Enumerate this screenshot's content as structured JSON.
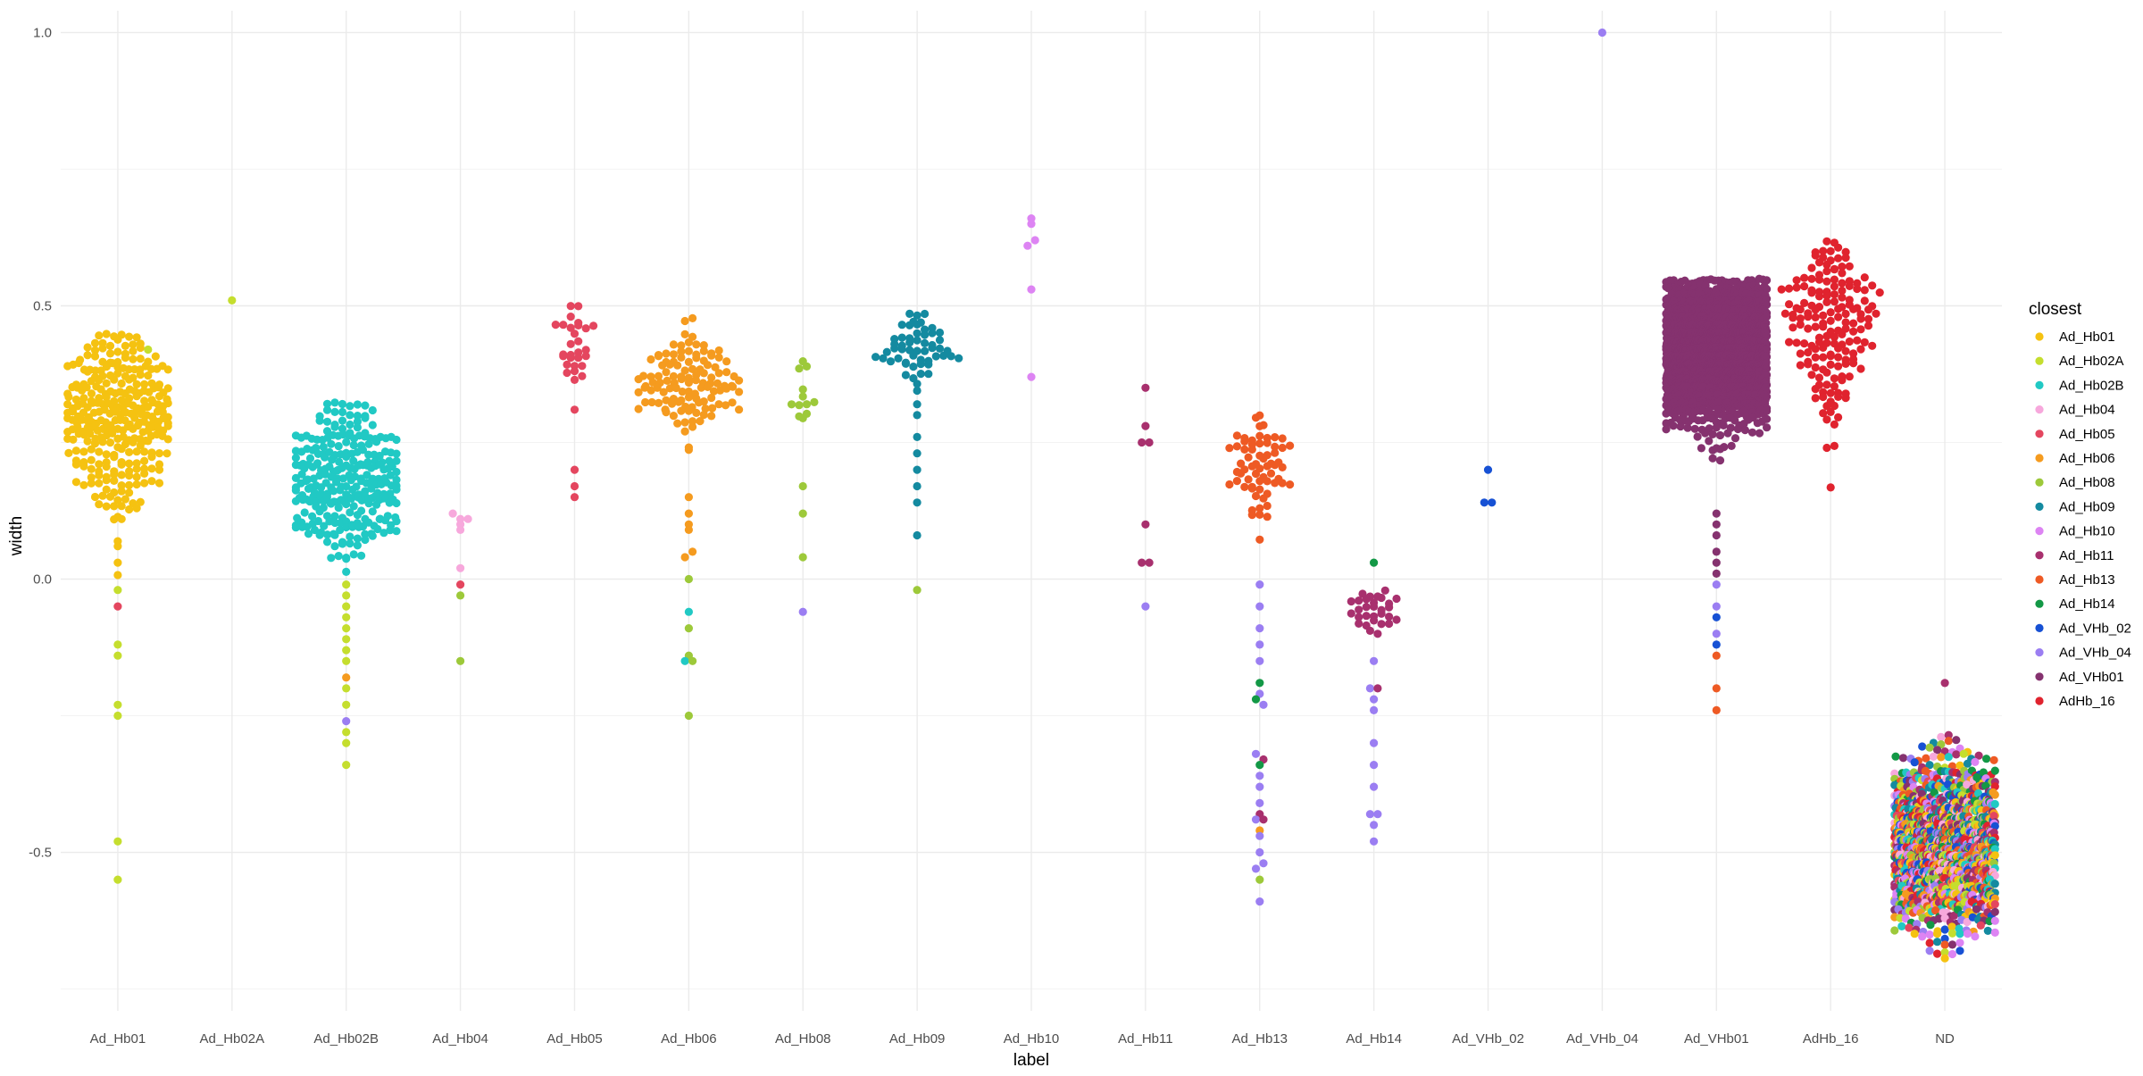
{
  "chart_data": {
    "type": "scatter",
    "subtype": "beeswarm",
    "title": "",
    "xlabel": "label",
    "ylabel": "width",
    "ylim": [
      -0.75,
      1.0
    ],
    "y_ticks": [
      -0.5,
      0.0,
      0.5,
      1.0
    ],
    "y_tick_labels": [
      "-0.5",
      "0.0",
      "0.5",
      "1.0"
    ],
    "grid": true,
    "legend": {
      "title": "closest",
      "position": "right"
    },
    "categories": [
      "Ad_Hb01",
      "Ad_Hb02A",
      "Ad_Hb02B",
      "Ad_Hb04",
      "Ad_Hb05",
      "Ad_Hb06",
      "Ad_Hb08",
      "Ad_Hb09",
      "Ad_Hb10",
      "Ad_Hb11",
      "Ad_Hb13",
      "Ad_Hb14",
      "Ad_VHb_02",
      "Ad_VHb_04",
      "Ad_VHb01",
      "AdHb_16",
      "ND"
    ],
    "series": [
      {
        "name": "Ad_Hb01",
        "color": "#F5C211"
      },
      {
        "name": "Ad_Hb02A",
        "color": "#C5DE2E"
      },
      {
        "name": "Ad_Hb02B",
        "color": "#21C9C4"
      },
      {
        "name": "Ad_Hb04",
        "color": "#F7A8DC"
      },
      {
        "name": "Ad_Hb05",
        "color": "#E4465F"
      },
      {
        "name": "Ad_Hb06",
        "color": "#F59B1F"
      },
      {
        "name": "Ad_Hb08",
        "color": "#9DC93A"
      },
      {
        "name": "Ad_Hb09",
        "color": "#148AA0"
      },
      {
        "name": "Ad_Hb10",
        "color": "#DD84F3"
      },
      {
        "name": "Ad_Hb11",
        "color": "#A8306E"
      },
      {
        "name": "Ad_Hb13",
        "color": "#EE5A24"
      },
      {
        "name": "Ad_Hb14",
        "color": "#139846"
      },
      {
        "name": "Ad_VHb_02",
        "color": "#1751D4"
      },
      {
        "name": "Ad_VHb_04",
        "color": "#9B7EF2"
      },
      {
        "name": "Ad_VHb01",
        "color": "#85326F"
      },
      {
        "name": "AdHb_16",
        "color": "#E0232E"
      }
    ],
    "groups": [
      {
        "label": "Ad_Hb01",
        "main": "Ad_Hb01",
        "n": 300,
        "center": 0.3,
        "spread": 0.09,
        "min": 0.0,
        "max": 0.45,
        "extras": [
          [
            -0.02,
            "Ad_Hb02A"
          ],
          [
            -0.05,
            "Ad_Hb05"
          ],
          [
            -0.12,
            "Ad_Hb02A"
          ],
          [
            -0.14,
            "Ad_Hb02A"
          ],
          [
            -0.23,
            "Ad_Hb02A"
          ],
          [
            -0.25,
            "Ad_Hb02A"
          ],
          [
            -0.48,
            "Ad_Hb02A"
          ],
          [
            -0.55,
            "Ad_Hb02A"
          ],
          [
            0.42,
            "Ad_Hb02A"
          ],
          [
            0.03,
            "Ad_Hb01"
          ],
          [
            0.06,
            "Ad_Hb01"
          ]
        ]
      },
      {
        "label": "Ad_Hb02A",
        "main": "Ad_Hb02A",
        "n": 0,
        "center": 0.5,
        "spread": 0.0,
        "min": 0.5,
        "max": 0.5,
        "extras": [
          [
            0.51,
            "Ad_Hb02A"
          ]
        ]
      },
      {
        "label": "Ad_Hb02B",
        "main": "Ad_Hb02B",
        "n": 280,
        "center": 0.18,
        "spread": 0.07,
        "min": 0.0,
        "max": 0.33,
        "extras": [
          [
            -0.01,
            "Ad_Hb02A"
          ],
          [
            -0.03,
            "Ad_Hb02A"
          ],
          [
            -0.05,
            "Ad_Hb02A"
          ],
          [
            -0.07,
            "Ad_Hb02A"
          ],
          [
            -0.09,
            "Ad_Hb02A"
          ],
          [
            -0.11,
            "Ad_Hb02A"
          ],
          [
            -0.13,
            "Ad_Hb02A"
          ],
          [
            -0.15,
            "Ad_Hb02A"
          ],
          [
            -0.18,
            "Ad_Hb06"
          ],
          [
            -0.2,
            "Ad_Hb02A"
          ],
          [
            -0.23,
            "Ad_Hb02A"
          ],
          [
            -0.26,
            "Ad_VHb_04"
          ],
          [
            -0.28,
            "Ad_Hb02A"
          ],
          [
            -0.3,
            "Ad_Hb02A"
          ],
          [
            -0.34,
            "Ad_Hb02A"
          ]
        ]
      },
      {
        "label": "Ad_Hb04",
        "main": "Ad_Hb04",
        "n": 0,
        "center": 0.1,
        "spread": 0.0,
        "min": 0.1,
        "max": 0.1,
        "extras": [
          [
            0.12,
            "Ad_Hb04"
          ],
          [
            0.11,
            "Ad_Hb04"
          ],
          [
            0.09,
            "Ad_Hb04"
          ],
          [
            0.1,
            "Ad_Hb04"
          ],
          [
            0.11,
            "Ad_Hb04"
          ],
          [
            0.02,
            "Ad_Hb04"
          ],
          [
            -0.01,
            "Ad_Hb05"
          ],
          [
            -0.03,
            "Ad_Hb08"
          ],
          [
            -0.15,
            "Ad_Hb08"
          ]
        ]
      },
      {
        "label": "Ad_Hb05",
        "main": "Ad_Hb05",
        "n": 26,
        "center": 0.42,
        "spread": 0.04,
        "min": 0.36,
        "max": 0.53,
        "extras": [
          [
            0.31,
            "Ad_Hb05"
          ],
          [
            0.2,
            "Ad_Hb05"
          ],
          [
            0.17,
            "Ad_Hb05"
          ],
          [
            0.15,
            "Ad_Hb05"
          ],
          [
            0.39,
            "Ad_Hb05"
          ],
          [
            0.39,
            "Ad_Hb05"
          ]
        ]
      },
      {
        "label": "Ad_Hb06",
        "main": "Ad_Hb06",
        "n": 120,
        "center": 0.36,
        "spread": 0.05,
        "min": 0.18,
        "max": 0.48,
        "extras": [
          [
            0.15,
            "Ad_Hb06"
          ],
          [
            0.12,
            "Ad_Hb06"
          ],
          [
            0.1,
            "Ad_Hb06"
          ],
          [
            0.09,
            "Ad_Hb06"
          ],
          [
            0.04,
            "Ad_Hb06"
          ],
          [
            0.05,
            "Ad_Hb06"
          ],
          [
            0.0,
            "Ad_Hb08"
          ],
          [
            -0.06,
            "Ad_Hb02B"
          ],
          [
            -0.09,
            "Ad_Hb08"
          ],
          [
            -0.14,
            "Ad_Hb08"
          ],
          [
            -0.15,
            "Ad_Hb02B"
          ],
          [
            -0.15,
            "Ad_Hb08"
          ],
          [
            -0.25,
            "Ad_Hb08"
          ]
        ]
      },
      {
        "label": "Ad_Hb08",
        "main": "Ad_Hb08",
        "n": 12,
        "center": 0.34,
        "spread": 0.04,
        "min": 0.27,
        "max": 0.4,
        "extras": [
          [
            0.17,
            "Ad_Hb08"
          ],
          [
            0.12,
            "Ad_Hb08"
          ],
          [
            0.04,
            "Ad_Hb08"
          ],
          [
            -0.06,
            "Ad_VHb_04"
          ]
        ]
      },
      {
        "label": "Ad_Hb09",
        "main": "Ad_Hb09",
        "n": 55,
        "center": 0.42,
        "spread": 0.04,
        "min": 0.33,
        "max": 0.51,
        "extras": [
          [
            0.32,
            "Ad_Hb09"
          ],
          [
            0.3,
            "Ad_Hb09"
          ],
          [
            0.26,
            "Ad_Hb09"
          ],
          [
            0.23,
            "Ad_Hb09"
          ],
          [
            0.2,
            "Ad_Hb09"
          ],
          [
            0.17,
            "Ad_Hb09"
          ],
          [
            0.14,
            "Ad_Hb09"
          ],
          [
            0.08,
            "Ad_Hb09"
          ],
          [
            -0.02,
            "Ad_Hb08"
          ]
        ]
      },
      {
        "label": "Ad_Hb10",
        "main": "Ad_Hb10",
        "n": 0,
        "center": 0.6,
        "spread": 0.0,
        "min": 0.6,
        "max": 0.6,
        "extras": [
          [
            0.65,
            "Ad_Hb10"
          ],
          [
            0.61,
            "Ad_Hb10"
          ],
          [
            0.53,
            "Ad_Hb10"
          ],
          [
            0.62,
            "Ad_Hb10"
          ],
          [
            0.66,
            "Ad_Hb10"
          ],
          [
            0.37,
            "Ad_Hb10"
          ]
        ]
      },
      {
        "label": "Ad_Hb11",
        "main": "Ad_Hb11",
        "n": 0,
        "center": 0.2,
        "spread": 0.0,
        "min": 0.2,
        "max": 0.2,
        "extras": [
          [
            0.28,
            "Ad_Hb11"
          ],
          [
            0.25,
            "Ad_Hb11"
          ],
          [
            0.35,
            "Ad_Hb11"
          ],
          [
            0.25,
            "Ad_Hb11"
          ],
          [
            0.1,
            "Ad_Hb11"
          ],
          [
            0.03,
            "Ad_Hb11"
          ],
          [
            0.03,
            "Ad_Hb11"
          ],
          [
            -0.05,
            "Ad_VHb_04"
          ]
        ]
      },
      {
        "label": "Ad_Hb13",
        "main": "Ad_Hb13",
        "n": 65,
        "center": 0.2,
        "spread": 0.06,
        "min": 0.02,
        "max": 0.3,
        "extras": [
          [
            -0.01,
            "Ad_VHb_04"
          ],
          [
            -0.05,
            "Ad_VHb_04"
          ],
          [
            -0.09,
            "Ad_VHb_04"
          ],
          [
            -0.12,
            "Ad_VHb_04"
          ],
          [
            -0.15,
            "Ad_VHb_04"
          ],
          [
            -0.19,
            "Ad_Hb14"
          ],
          [
            -0.21,
            "Ad_VHb_04"
          ],
          [
            -0.22,
            "Ad_Hb14"
          ],
          [
            -0.23,
            "Ad_VHb_04"
          ],
          [
            -0.32,
            "Ad_VHb_04"
          ],
          [
            -0.33,
            "Ad_Hb11"
          ],
          [
            -0.34,
            "Ad_Hb14"
          ],
          [
            -0.36,
            "Ad_VHb_04"
          ],
          [
            -0.41,
            "Ad_VHb_04"
          ],
          [
            -0.43,
            "Ad_Hb11"
          ],
          [
            -0.44,
            "Ad_VHb_04"
          ],
          [
            -0.46,
            "Ad_Hb06"
          ],
          [
            -0.47,
            "Ad_VHb_04"
          ],
          [
            -0.5,
            "Ad_VHb_04"
          ],
          [
            -0.53,
            "Ad_VHb_04"
          ],
          [
            -0.55,
            "Ad_Hb08"
          ],
          [
            -0.59,
            "Ad_VHb_04"
          ],
          [
            -0.38,
            "Ad_VHb_04"
          ],
          [
            -0.44,
            "Ad_Hb11"
          ],
          [
            -0.52,
            "Ad_VHb_04"
          ]
        ]
      },
      {
        "label": "Ad_Hb14",
        "main": "Ad_Hb11",
        "n": 30,
        "center": -0.06,
        "spread": 0.03,
        "min": -0.11,
        "max": -0.02,
        "extras": [
          [
            0.03,
            "Ad_Hb14"
          ],
          [
            -0.15,
            "Ad_VHb_04"
          ],
          [
            -0.2,
            "Ad_VHb_04"
          ],
          [
            -0.22,
            "Ad_VHb_04"
          ],
          [
            -0.24,
            "Ad_VHb_04"
          ],
          [
            -0.2,
            "Ad_Hb11"
          ],
          [
            -0.3,
            "Ad_VHb_04"
          ],
          [
            -0.34,
            "Ad_VHb_04"
          ],
          [
            -0.38,
            "Ad_VHb_04"
          ],
          [
            -0.43,
            "Ad_VHb_04"
          ],
          [
            -0.45,
            "Ad_VHb_04"
          ],
          [
            -0.48,
            "Ad_VHb_04"
          ],
          [
            -0.43,
            "Ad_VHb_04"
          ]
        ]
      },
      {
        "label": "Ad_VHb_02",
        "main": "Ad_VHb_02",
        "n": 0,
        "center": 0.15,
        "spread": 0.0,
        "min": 0.15,
        "max": 0.15,
        "extras": [
          [
            0.2,
            "Ad_VHb_02"
          ],
          [
            0.14,
            "Ad_VHb_02"
          ],
          [
            0.14,
            "Ad_VHb_02"
          ]
        ]
      },
      {
        "label": "Ad_VHb_04",
        "main": "Ad_VHb_04",
        "n": 0,
        "center": 1.0,
        "spread": 0.0,
        "min": 1.0,
        "max": 1.0,
        "extras": [
          [
            1.0,
            "Ad_VHb_04"
          ]
        ]
      },
      {
        "label": "Ad_VHb01",
        "main": "Ad_VHb01",
        "n": 2500,
        "center": 0.42,
        "spread": 0.06,
        "min": 0.15,
        "max": 0.55,
        "extras": [
          [
            0.12,
            "Ad_VHb01"
          ],
          [
            0.1,
            "Ad_VHb01"
          ],
          [
            0.08,
            "Ad_VHb01"
          ],
          [
            0.05,
            "Ad_VHb01"
          ],
          [
            0.03,
            "Ad_VHb01"
          ],
          [
            0.01,
            "Ad_VHb01"
          ],
          [
            -0.01,
            "Ad_VHb_04"
          ],
          [
            -0.05,
            "Ad_VHb_04"
          ],
          [
            -0.07,
            "Ad_VHb_02"
          ],
          [
            -0.1,
            "Ad_VHb_04"
          ],
          [
            -0.12,
            "Ad_VHb_02"
          ],
          [
            -0.14,
            "Ad_Hb13"
          ],
          [
            -0.2,
            "Ad_Hb13"
          ],
          [
            -0.24,
            "Ad_Hb13"
          ]
        ]
      },
      {
        "label": "AdHb_16",
        "main": "AdHb_16",
        "n": 170,
        "center": 0.48,
        "spread": 0.1,
        "min": 0.15,
        "max": 0.62,
        "extras": []
      },
      {
        "label": "ND",
        "main": "mixed",
        "n": 1500,
        "center": -0.49,
        "spread": 0.07,
        "min": -0.76,
        "max": -0.11,
        "extras": []
      }
    ]
  }
}
